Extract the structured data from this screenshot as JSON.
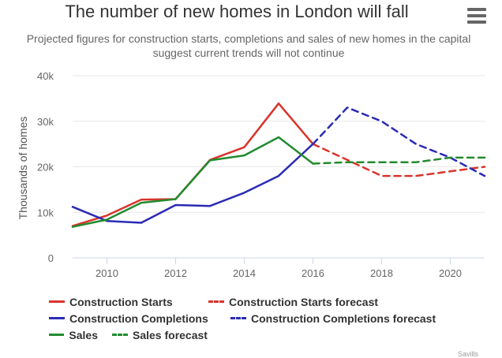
{
  "title": "The number of new homes in London will fall",
  "subtitle": "Projected figures for construction starts, completions and sales of new homes in the capital suggest current trends will not continue",
  "menu_icon": "hamburger-menu-icon",
  "credits": "Savills",
  "chart_data": {
    "type": "line",
    "title": "The number of new homes in London will fall",
    "subtitle": "Projected figures for construction starts, completions and sales of new homes in the capital suggest current trends will not continue",
    "xlabel": "",
    "ylabel": "Thousands of homes",
    "xlim": [
      2009,
      2021
    ],
    "ylim": [
      0,
      40000
    ],
    "x_ticks": [
      2010,
      2012,
      2014,
      2016,
      2018,
      2020
    ],
    "x_tick_labels": [
      "2010",
      "2012",
      "2014",
      "2016",
      "2018",
      "2020"
    ],
    "y_ticks": [
      0,
      10000,
      20000,
      30000,
      40000
    ],
    "y_tick_labels": [
      "0",
      "10k",
      "20k",
      "30k",
      "40k"
    ],
    "grid": "horizontal",
    "legend_position": "bottom",
    "series": [
      {
        "name": "Construction Starts",
        "color": "#d9342b",
        "dash": false,
        "x": [
          2009,
          2010,
          2011,
          2012,
          2013,
          2014,
          2015,
          2016
        ],
        "y": [
          7000,
          9300,
          12800,
          12900,
          21500,
          24300,
          33900,
          25000
        ]
      },
      {
        "name": "Construction Starts forecast",
        "color": "#d9342b",
        "dash": true,
        "x": [
          2016,
          2017,
          2018,
          2019,
          2020,
          2021
        ],
        "y": [
          25000,
          21500,
          18000,
          18000,
          19000,
          20000
        ]
      },
      {
        "name": "Construction Completions",
        "color": "#2b2bb5",
        "dash": false,
        "x": [
          2009,
          2010,
          2011,
          2012,
          2013,
          2014,
          2015,
          2016
        ],
        "y": [
          11200,
          8100,
          7700,
          11600,
          11400,
          14300,
          18000,
          25000
        ]
      },
      {
        "name": "Construction Completions forecast",
        "color": "#2b2bb5",
        "dash": true,
        "x": [
          2016,
          2017,
          2018,
          2019,
          2020,
          2021
        ],
        "y": [
          25000,
          33000,
          30000,
          25000,
          22000,
          18000
        ]
      },
      {
        "name": "Sales",
        "color": "#228b2e",
        "dash": false,
        "x": [
          2009,
          2010,
          2011,
          2012,
          2013,
          2014,
          2015,
          2016
        ],
        "y": [
          6800,
          8400,
          12100,
          12900,
          21400,
          22500,
          26500,
          20700
        ]
      },
      {
        "name": "Sales forecast",
        "color": "#228b2e",
        "dash": true,
        "x": [
          2016,
          2017,
          2018,
          2019,
          2020,
          2021
        ],
        "y": [
          20700,
          21000,
          21000,
          21000,
          22000,
          22000
        ]
      }
    ]
  }
}
